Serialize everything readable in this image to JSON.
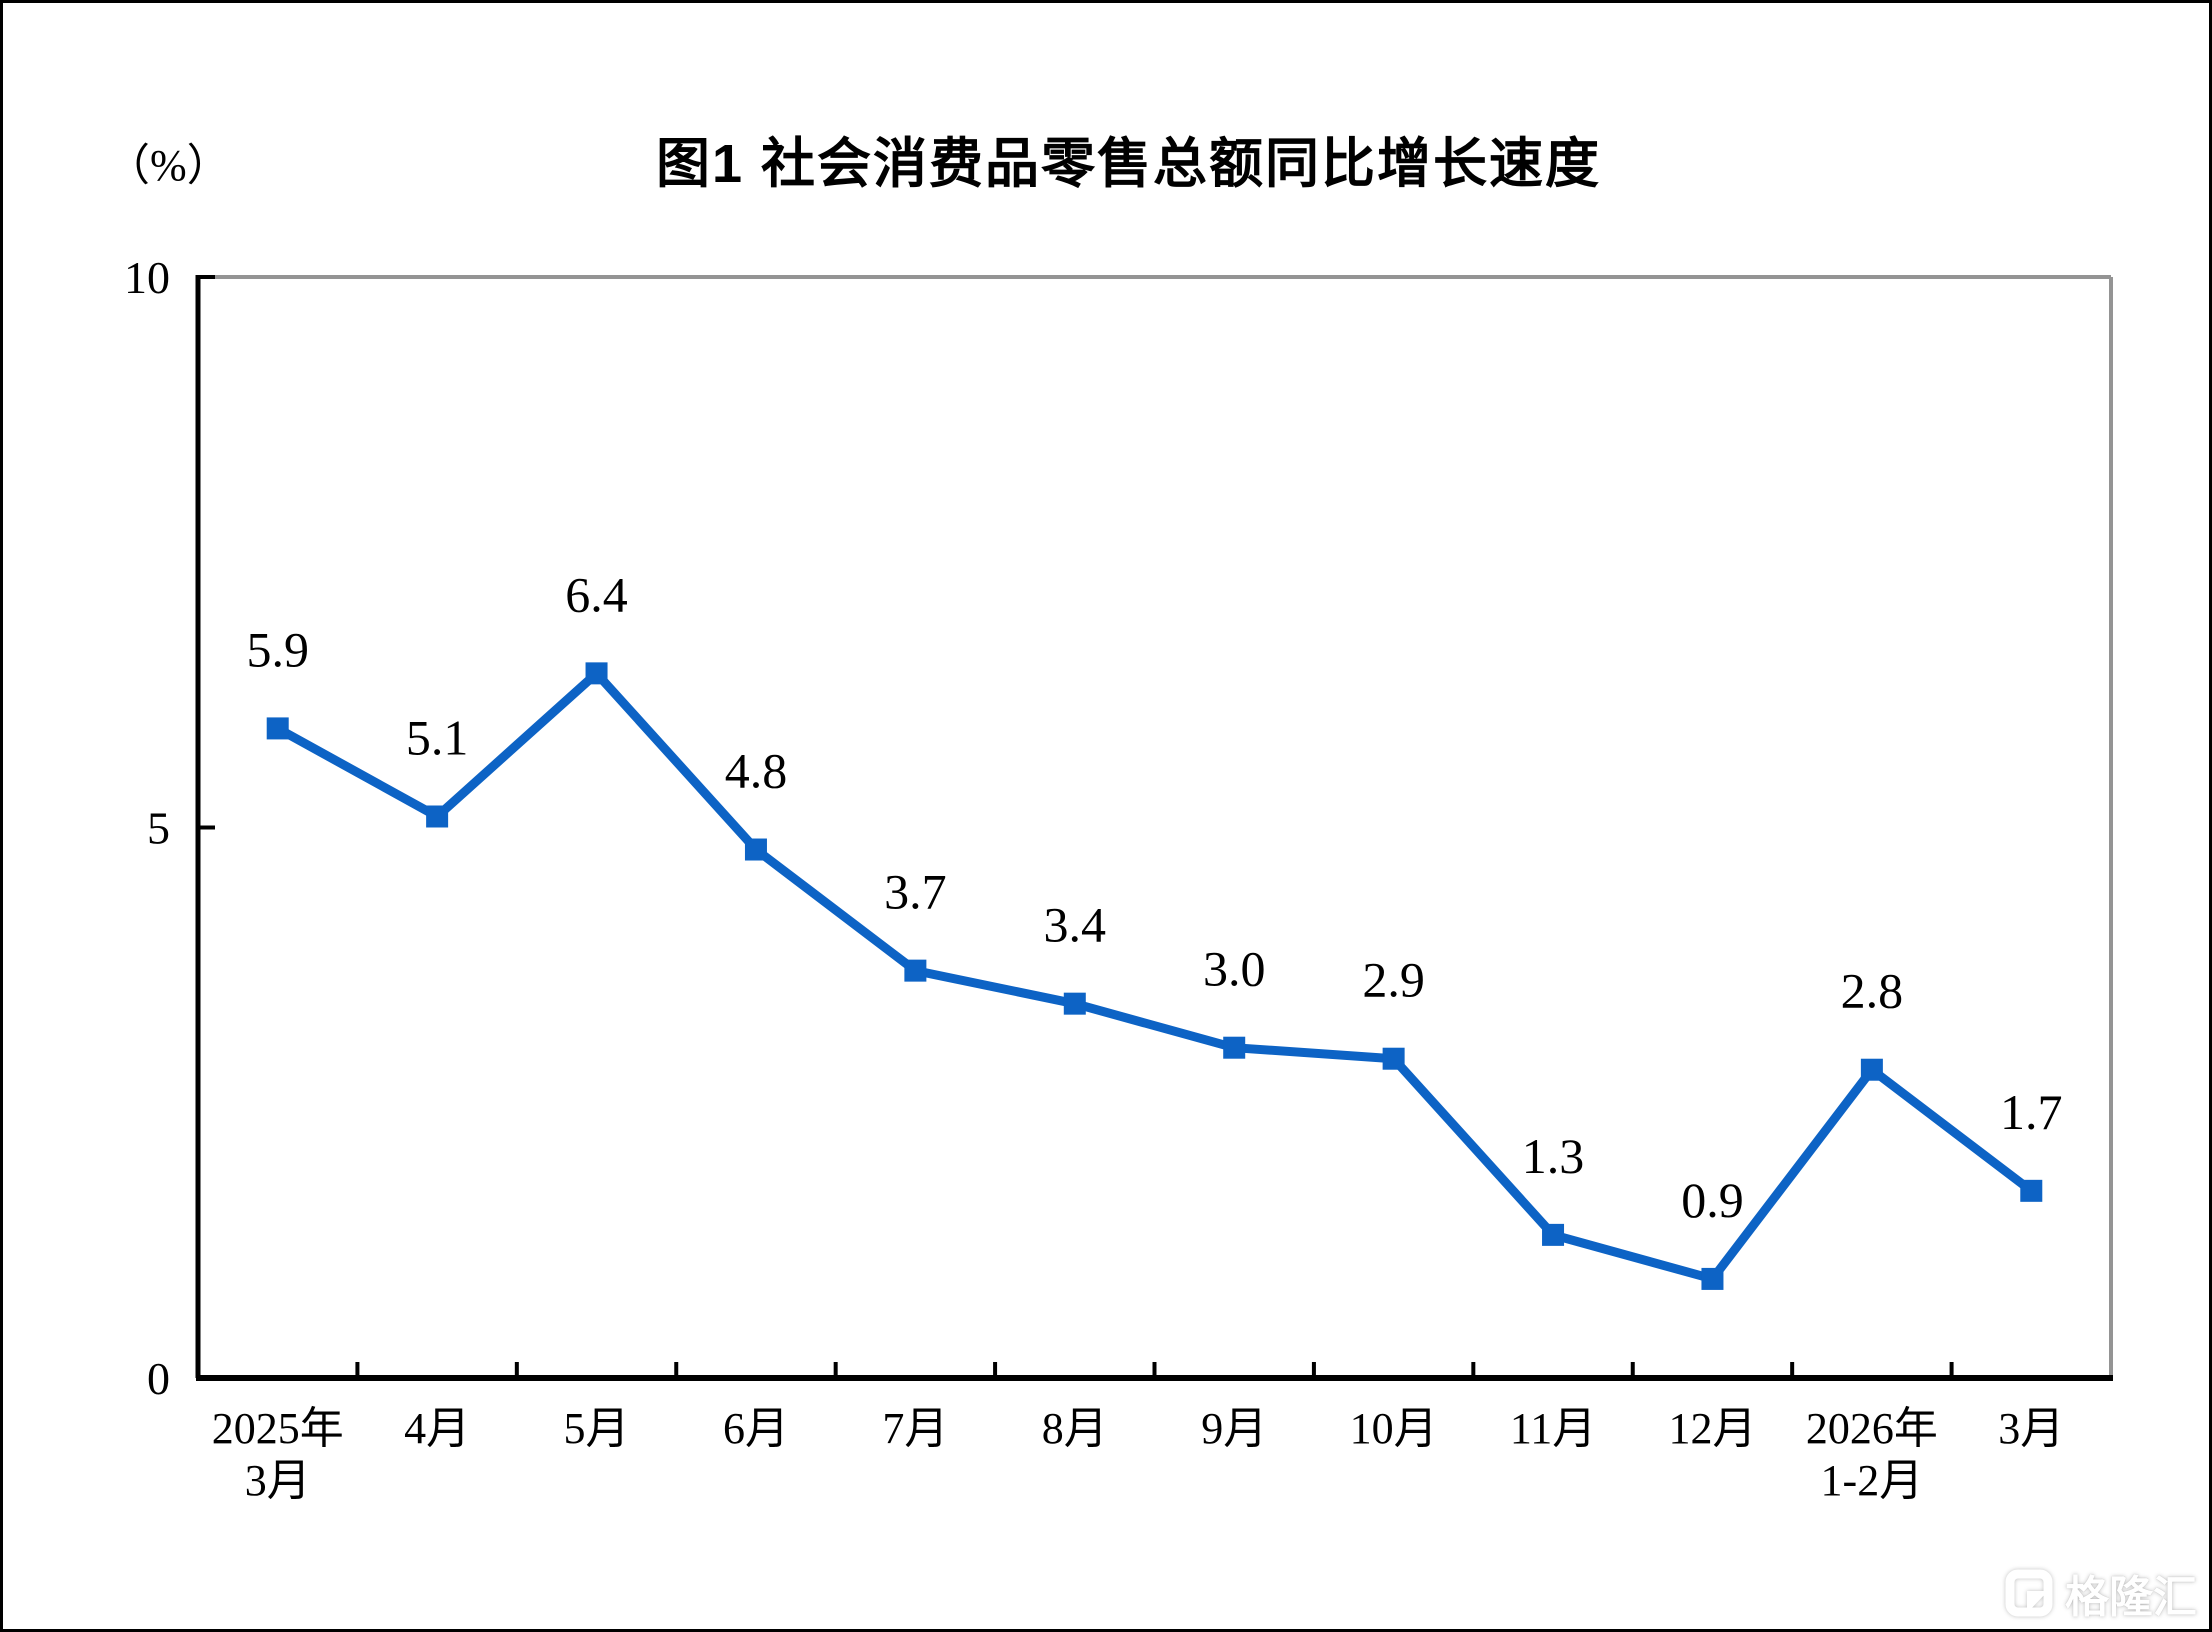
{
  "page": {
    "background": "#ffffff",
    "border_color": "#000000"
  },
  "chart_data": {
    "type": "line",
    "title": "图1  社会消费品零售总额同比增长速度",
    "unit_label": "（%）",
    "categories": [
      [
        "2025年",
        "3月"
      ],
      [
        "4月"
      ],
      [
        "5月"
      ],
      [
        "6月"
      ],
      [
        "7月"
      ],
      [
        "8月"
      ],
      [
        "9月"
      ],
      [
        "10月"
      ],
      [
        "11月"
      ],
      [
        "12月"
      ],
      [
        "2026年",
        "1-2月"
      ],
      [
        "3月"
      ]
    ],
    "values": [
      5.9,
      5.1,
      6.4,
      4.8,
      3.7,
      3.4,
      3.0,
      2.9,
      1.3,
      0.9,
      2.8,
      1.7
    ],
    "labels": [
      "5.9",
      "5.1",
      "6.4",
      "4.8",
      "3.7",
      "3.4",
      "3.0",
      "2.9",
      "1.3",
      "0.9",
      "2.8",
      "1.7"
    ],
    "ylim": [
      0,
      10
    ],
    "y_ticks": [
      0,
      5,
      10
    ],
    "grid": false,
    "legend": false,
    "line_color": "#0d63c5",
    "marker": "square",
    "axis_color": "#000000",
    "frame_color": "#949494",
    "text_color": "#000000"
  },
  "watermark": {
    "text": "格隆汇"
  }
}
